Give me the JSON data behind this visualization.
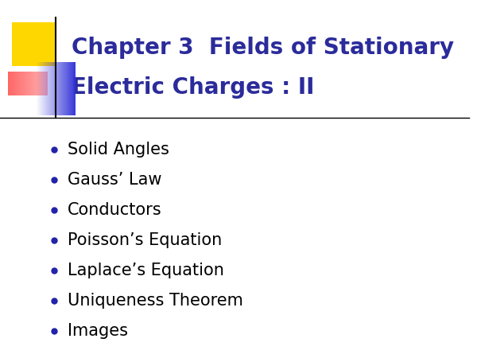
{
  "title_line1": "Chapter 3  Fields of Stationary",
  "title_line2": "Electric Charges : II",
  "title_color": "#2B2B9B",
  "bullet_items": [
    "Solid Angles",
    "Gauss’ Law",
    "Conductors",
    "Poisson’s Equation",
    "Laplace’s Equation",
    "Uniqueness Theorem",
    "Images"
  ],
  "bullet_color": "#000000",
  "bullet_dot_color": "#2222AA",
  "background_color": "#FFFFFF",
  "title_fontsize": 20,
  "bullet_fontsize": 15
}
